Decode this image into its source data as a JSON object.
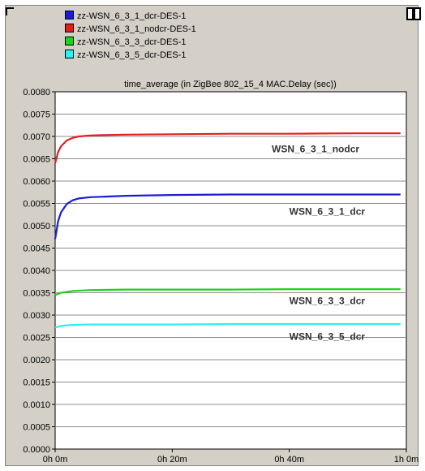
{
  "legend": [
    {
      "label": "zz-WSN_6_3_1_dcr-DES-1",
      "color": "#1c1cd8"
    },
    {
      "label": "zz-WSN_6_3_1_nodcr-DES-1",
      "color": "#e02020"
    },
    {
      "label": "zz-WSN_6_3_3_dcr-DES-1",
      "color": "#1ed21e"
    },
    {
      "label": "zz-WSN_6_3_5_dcr-DES-1",
      "color": "#2ef0f0"
    }
  ],
  "chart_data": {
    "type": "line",
    "title": "time_average (in ZigBee 802_15_4 MAC.Delay (sec))",
    "xlabel": "",
    "ylabel": "",
    "xlim": [
      0,
      60
    ],
    "ylim": [
      0,
      0.008
    ],
    "x_unit": "minutes",
    "x_ticks": [
      {
        "value": 0,
        "label": "0h 0m"
      },
      {
        "value": 20,
        "label": "0h 20m"
      },
      {
        "value": 40,
        "label": "0h 40m"
      },
      {
        "value": 60,
        "label": "1h 0m"
      }
    ],
    "y_ticks": [
      "0.0000",
      "0.0005",
      "0.0010",
      "0.0015",
      "0.0020",
      "0.0025",
      "0.0030",
      "0.0035",
      "0.0040",
      "0.0045",
      "0.0050",
      "0.0055",
      "0.0060",
      "0.0065",
      "0.0070",
      "0.0075",
      "0.0080"
    ],
    "grid": true,
    "legend_position": "top",
    "series": [
      {
        "name": "zz-WSN_6_3_1_dcr-DES-1",
        "label": "WSN_6_3_1_dcr",
        "color": "#1c1cd8",
        "x": [
          0,
          0.5,
          1,
          2,
          3,
          4,
          6,
          8,
          12,
          20,
          30,
          40,
          50,
          59
        ],
        "y": [
          0.0047,
          0.0051,
          0.0053,
          0.00549,
          0.00557,
          0.00561,
          0.00564,
          0.00565,
          0.00567,
          0.00569,
          0.0057,
          0.0057,
          0.0057,
          0.0057
        ]
      },
      {
        "name": "zz-WSN_6_3_1_nodcr-DES-1",
        "label": "WSN_6_3_1_nodcr",
        "color": "#e02020",
        "x": [
          0,
          0.5,
          1,
          2,
          3,
          4,
          6,
          8,
          12,
          20,
          30,
          40,
          50,
          59
        ],
        "y": [
          0.0064,
          0.00665,
          0.00678,
          0.00691,
          0.00697,
          0.007,
          0.00702,
          0.00703,
          0.00704,
          0.00705,
          0.00706,
          0.00706,
          0.00707,
          0.00707
        ]
      },
      {
        "name": "zz-WSN_6_3_3_dcr-DES-1",
        "label": "WSN_6_3_3_dcr",
        "color": "#1ed21e",
        "x": [
          0,
          1,
          3,
          6,
          12,
          20,
          30,
          40,
          50,
          59
        ],
        "y": [
          0.00345,
          0.0035,
          0.00354,
          0.00356,
          0.00357,
          0.00357,
          0.00357,
          0.00358,
          0.00358,
          0.00358
        ]
      },
      {
        "name": "zz-WSN_6_3_5_dcr-DES-1",
        "label": "WSN_6_3_5_dcr",
        "color": "#2ef0f0",
        "x": [
          0,
          1,
          3,
          6,
          12,
          20,
          30,
          40,
          50,
          59
        ],
        "y": [
          0.00272,
          0.00276,
          0.00278,
          0.00279,
          0.00279,
          0.00279,
          0.0028,
          0.0028,
          0.0028,
          0.0028
        ]
      }
    ],
    "annotations": [
      {
        "text": "WSN_6_3_1_nodcr",
        "x": 37,
        "y": 0.00665
      },
      {
        "text": "WSN_6_3_1_dcr",
        "x": 40,
        "y": 0.00525
      },
      {
        "text": "WSN_6_3_3_dcr",
        "x": 40,
        "y": 0.00325
      },
      {
        "text": "WSN_6_3_5_dcr",
        "x": 40,
        "y": 0.00245
      }
    ]
  }
}
